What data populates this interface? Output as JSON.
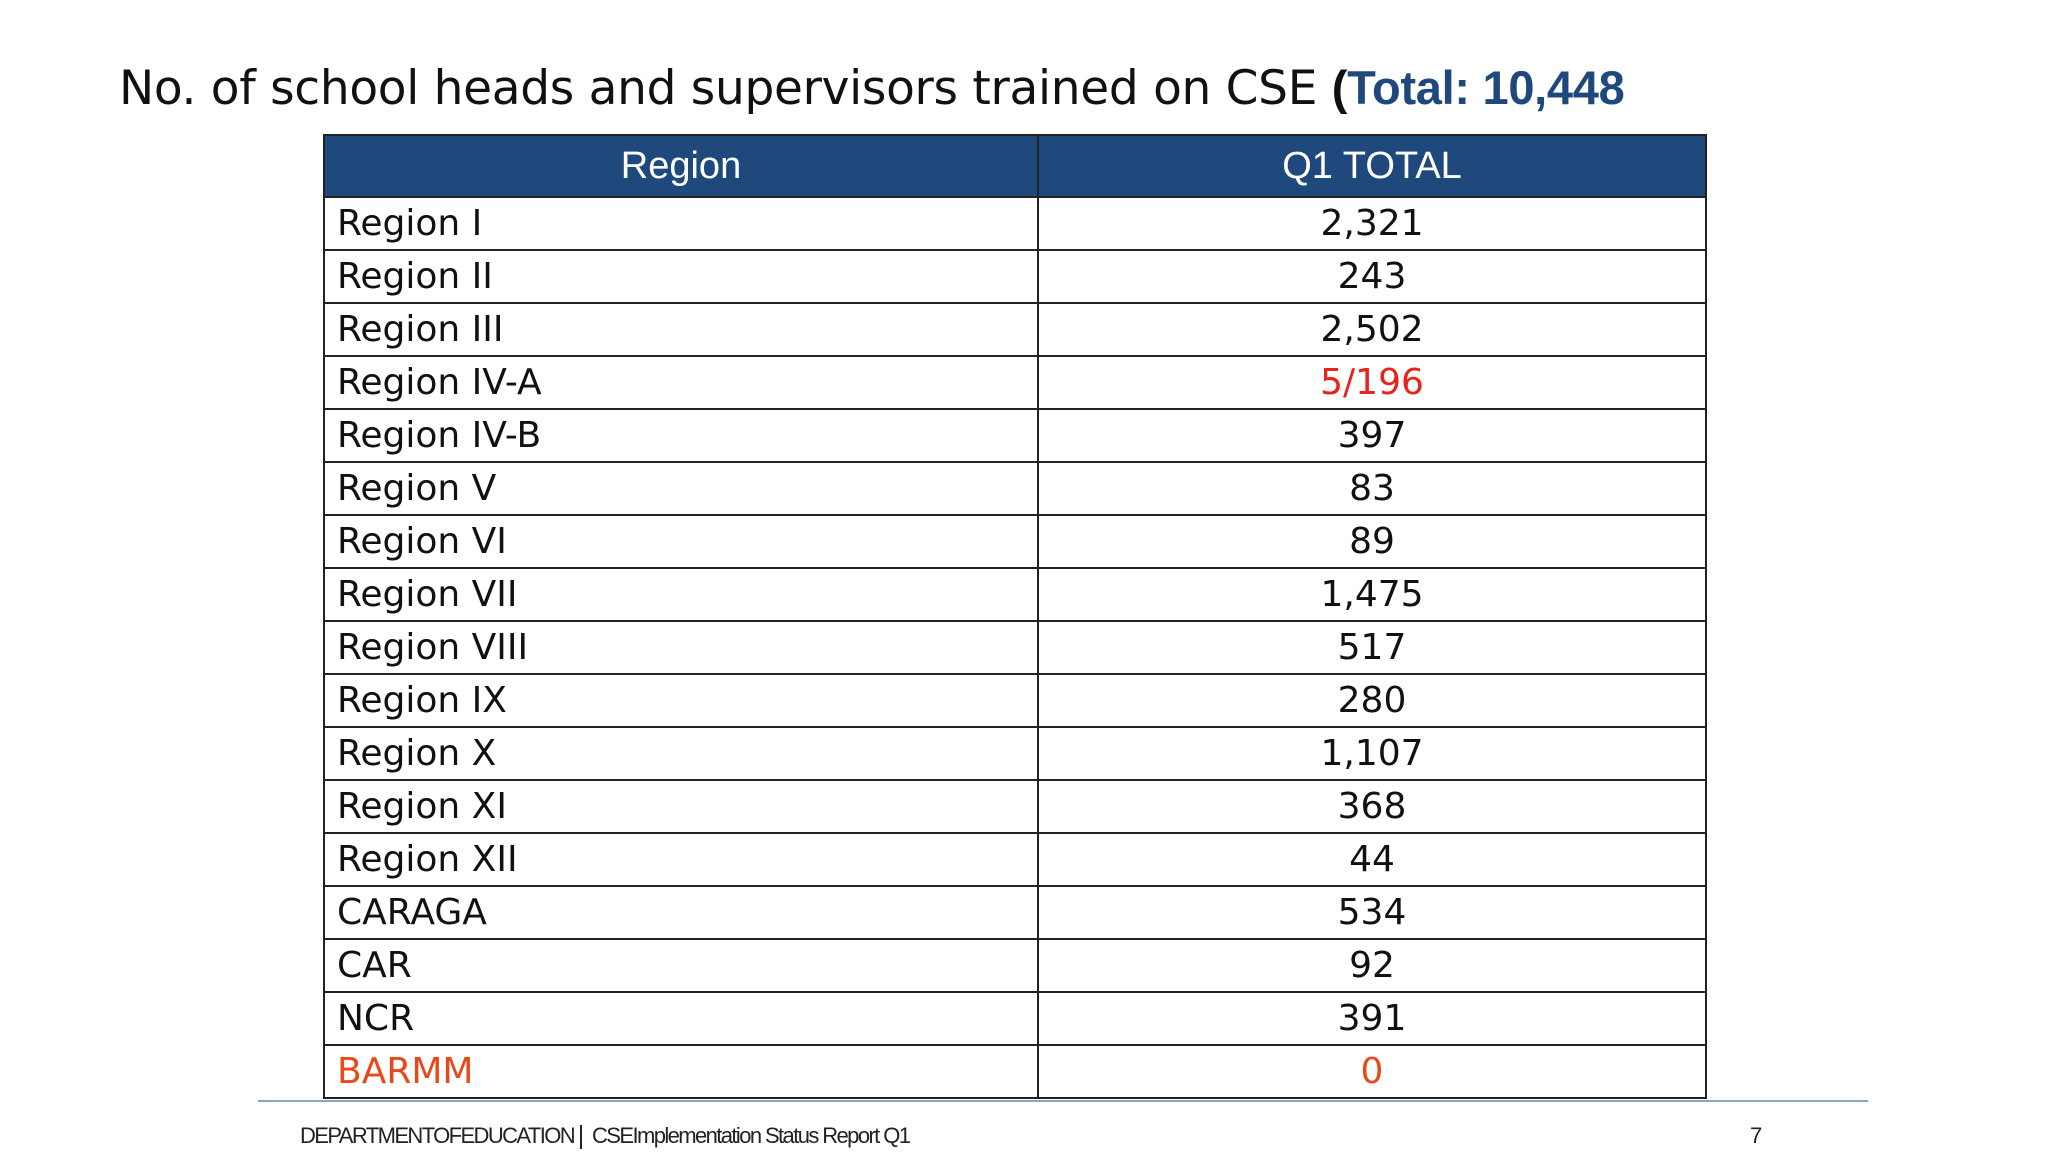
{
  "slide": {
    "title_main": "No. of school heads and supervisors trained on CSE ",
    "title_paren": "(",
    "title_total": "Total: 10,448"
  },
  "table": {
    "headers": [
      "Region",
      "Q1 TOTAL"
    ],
    "rows": [
      {
        "region": "Region I",
        "value": "2,321"
      },
      {
        "region": "Region II",
        "value": "243"
      },
      {
        "region": "Region III",
        "value": "2,502"
      },
      {
        "region": "Region IV-A",
        "value": "5/196"
      },
      {
        "region": "Region IV-B",
        "value": "397"
      },
      {
        "region": "Region V",
        "value": "83"
      },
      {
        "region": "Region VI",
        "value": "89"
      },
      {
        "region": "Region VII",
        "value": "1,475"
      },
      {
        "region": "Region VIII",
        "value": "517"
      },
      {
        "region": "Region IX",
        "value": "280"
      },
      {
        "region": "Region X",
        "value": "1,107"
      },
      {
        "region": "Region XI",
        "value": "368"
      },
      {
        "region": "Region XII",
        "value": "44"
      },
      {
        "region": "CARAGA",
        "value": "534"
      },
      {
        "region": "CAR",
        "value": "92"
      },
      {
        "region": "NCR",
        "value": "391"
      },
      {
        "region": "BARMM",
        "value": "0"
      }
    ]
  },
  "footer": {
    "department": "DEPARTMENTOFEDUCATION",
    "report": "CSEImplementation Status Report Q1",
    "page_number": "7"
  },
  "colors": {
    "header_bg": "#1f497d",
    "total_text": "#1f497d",
    "highlight_red": "#e8231a",
    "highlight_orange": "#e8491a"
  }
}
